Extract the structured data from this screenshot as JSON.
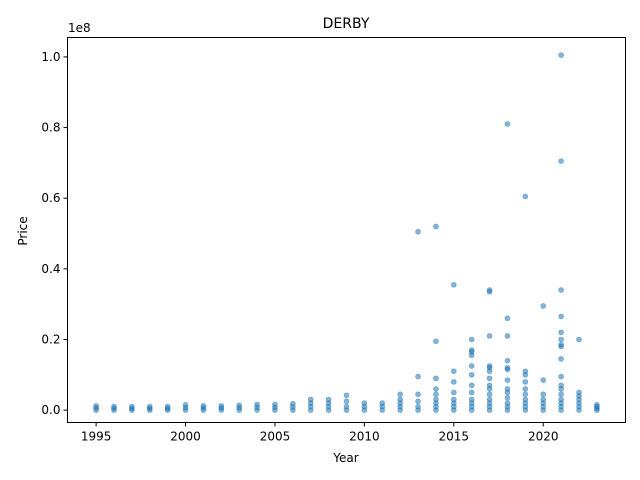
{
  "chart_data": {
    "type": "scatter",
    "title": "DERBY",
    "xlabel": "Year",
    "ylabel": "Price",
    "y_scale_label": "1e8",
    "xlim": [
      1993.4,
      2024.6
    ],
    "ylim": [
      -3500000,
      105500000
    ],
    "x_ticks": [
      1995,
      2000,
      2005,
      2010,
      2015,
      2020
    ],
    "x_tick_labels": [
      "1995",
      "2000",
      "2005",
      "2010",
      "2015",
      "2020"
    ],
    "y_ticks": [
      0,
      20000000,
      40000000,
      60000000,
      80000000,
      100000000
    ],
    "y_tick_labels": [
      "0.0",
      "0.2",
      "0.4",
      "0.6",
      "0.8",
      "1.0"
    ],
    "grid": false,
    "legend": "none",
    "marker_color": "#1f77b4",
    "marker_alpha": 0.55,
    "series": [
      {
        "points": [
          [
            1995,
            0
          ],
          [
            1995,
            600000
          ],
          [
            1995,
            1200000
          ],
          [
            1996,
            0
          ],
          [
            1996,
            500000
          ],
          [
            1996,
            1000000
          ],
          [
            1997,
            0
          ],
          [
            1997,
            500000
          ],
          [
            1997,
            1000000
          ],
          [
            1998,
            0
          ],
          [
            1998,
            500000
          ],
          [
            1998,
            1000000
          ],
          [
            1999,
            0
          ],
          [
            1999,
            500000
          ],
          [
            1999,
            1000000
          ],
          [
            2000,
            0
          ],
          [
            2000,
            700000
          ],
          [
            2000,
            1500000
          ],
          [
            2001,
            0
          ],
          [
            2001,
            600000
          ],
          [
            2001,
            1200000
          ],
          [
            2002,
            0
          ],
          [
            2002,
            600000
          ],
          [
            2002,
            1200000
          ],
          [
            2003,
            0
          ],
          [
            2003,
            700000
          ],
          [
            2003,
            1400000
          ],
          [
            2004,
            0
          ],
          [
            2004,
            800000
          ],
          [
            2004,
            1600000
          ],
          [
            2005,
            0
          ],
          [
            2005,
            800000
          ],
          [
            2005,
            1600000
          ],
          [
            2006,
            0
          ],
          [
            2006,
            900000
          ],
          [
            2006,
            1800000
          ],
          [
            2007,
            0
          ],
          [
            2007,
            1000000
          ],
          [
            2007,
            2000000
          ],
          [
            2007,
            3000000
          ],
          [
            2008,
            0
          ],
          [
            2008,
            1000000
          ],
          [
            2008,
            2000000
          ],
          [
            2008,
            3000000
          ],
          [
            2009,
            0
          ],
          [
            2009,
            1000000
          ],
          [
            2009,
            2500000
          ],
          [
            2009,
            4200000
          ],
          [
            2010,
            0
          ],
          [
            2010,
            1000000
          ],
          [
            2010,
            2000000
          ],
          [
            2011,
            0
          ],
          [
            2011,
            1000000
          ],
          [
            2011,
            2000000
          ],
          [
            2012,
            0
          ],
          [
            2012,
            1000000
          ],
          [
            2012,
            2000000
          ],
          [
            2012,
            3000000
          ],
          [
            2012,
            4500000
          ],
          [
            2013,
            0
          ],
          [
            2013,
            1000000
          ],
          [
            2013,
            2500000
          ],
          [
            2013,
            4500000
          ],
          [
            2013,
            9500000
          ],
          [
            2013,
            50500000
          ],
          [
            2014,
            0
          ],
          [
            2014,
            1000000
          ],
          [
            2014,
            2000000
          ],
          [
            2014,
            3000000
          ],
          [
            2014,
            4500000
          ],
          [
            2014,
            6000000
          ],
          [
            2014,
            9000000
          ],
          [
            2014,
            19500000
          ],
          [
            2014,
            52000000
          ],
          [
            2015,
            0
          ],
          [
            2015,
            1000000
          ],
          [
            2015,
            2000000
          ],
          [
            2015,
            3000000
          ],
          [
            2015,
            5000000
          ],
          [
            2015,
            8000000
          ],
          [
            2015,
            11000000
          ],
          [
            2015,
            35500000
          ],
          [
            2016,
            0
          ],
          [
            2016,
            1000000
          ],
          [
            2016,
            2000000
          ],
          [
            2016,
            3000000
          ],
          [
            2016,
            5000000
          ],
          [
            2016,
            7000000
          ],
          [
            2016,
            10000000
          ],
          [
            2016,
            12500000
          ],
          [
            2016,
            15500000
          ],
          [
            2016,
            16500000
          ],
          [
            2016,
            17000000
          ],
          [
            2016,
            20000000
          ],
          [
            2017,
            0
          ],
          [
            2017,
            1000000
          ],
          [
            2017,
            2000000
          ],
          [
            2017,
            3000000
          ],
          [
            2017,
            4500000
          ],
          [
            2017,
            6000000
          ],
          [
            2017,
            7000000
          ],
          [
            2017,
            9000000
          ],
          [
            2017,
            11000000
          ],
          [
            2017,
            12000000
          ],
          [
            2017,
            12500000
          ],
          [
            2017,
            21000000
          ],
          [
            2017,
            33500000
          ],
          [
            2017,
            34000000
          ],
          [
            2018,
            0
          ],
          [
            2018,
            1000000
          ],
          [
            2018,
            2000000
          ],
          [
            2018,
            3500000
          ],
          [
            2018,
            5000000
          ],
          [
            2018,
            6000000
          ],
          [
            2018,
            8500000
          ],
          [
            2018,
            11500000
          ],
          [
            2018,
            12000000
          ],
          [
            2018,
            14000000
          ],
          [
            2018,
            21000000
          ],
          [
            2018,
            26000000
          ],
          [
            2018,
            81000000
          ],
          [
            2019,
            0
          ],
          [
            2019,
            1000000
          ],
          [
            2019,
            2000000
          ],
          [
            2019,
            3000000
          ],
          [
            2019,
            4500000
          ],
          [
            2019,
            6000000
          ],
          [
            2019,
            8000000
          ],
          [
            2019,
            10000000
          ],
          [
            2019,
            11000000
          ],
          [
            2019,
            60500000
          ],
          [
            2020,
            0
          ],
          [
            2020,
            1000000
          ],
          [
            2020,
            2000000
          ],
          [
            2020,
            3000000
          ],
          [
            2020,
            4500000
          ],
          [
            2020,
            8500000
          ],
          [
            2020,
            29500000
          ],
          [
            2021,
            0
          ],
          [
            2021,
            1000000
          ],
          [
            2021,
            2000000
          ],
          [
            2021,
            3000000
          ],
          [
            2021,
            4500000
          ],
          [
            2021,
            6000000
          ],
          [
            2021,
            7000000
          ],
          [
            2021,
            9500000
          ],
          [
            2021,
            14500000
          ],
          [
            2021,
            18000000
          ],
          [
            2021,
            18500000
          ],
          [
            2021,
            20000000
          ],
          [
            2021,
            22000000
          ],
          [
            2021,
            26500000
          ],
          [
            2021,
            34000000
          ],
          [
            2021,
            70500000
          ],
          [
            2021,
            100500000
          ],
          [
            2022,
            0
          ],
          [
            2022,
            1000000
          ],
          [
            2022,
            2000000
          ],
          [
            2022,
            3000000
          ],
          [
            2022,
            4000000
          ],
          [
            2022,
            5000000
          ],
          [
            2022,
            20000000
          ],
          [
            2023,
            0
          ],
          [
            2023,
            500000
          ],
          [
            2023,
            1000000
          ],
          [
            2023,
            1500000
          ]
        ]
      }
    ]
  }
}
